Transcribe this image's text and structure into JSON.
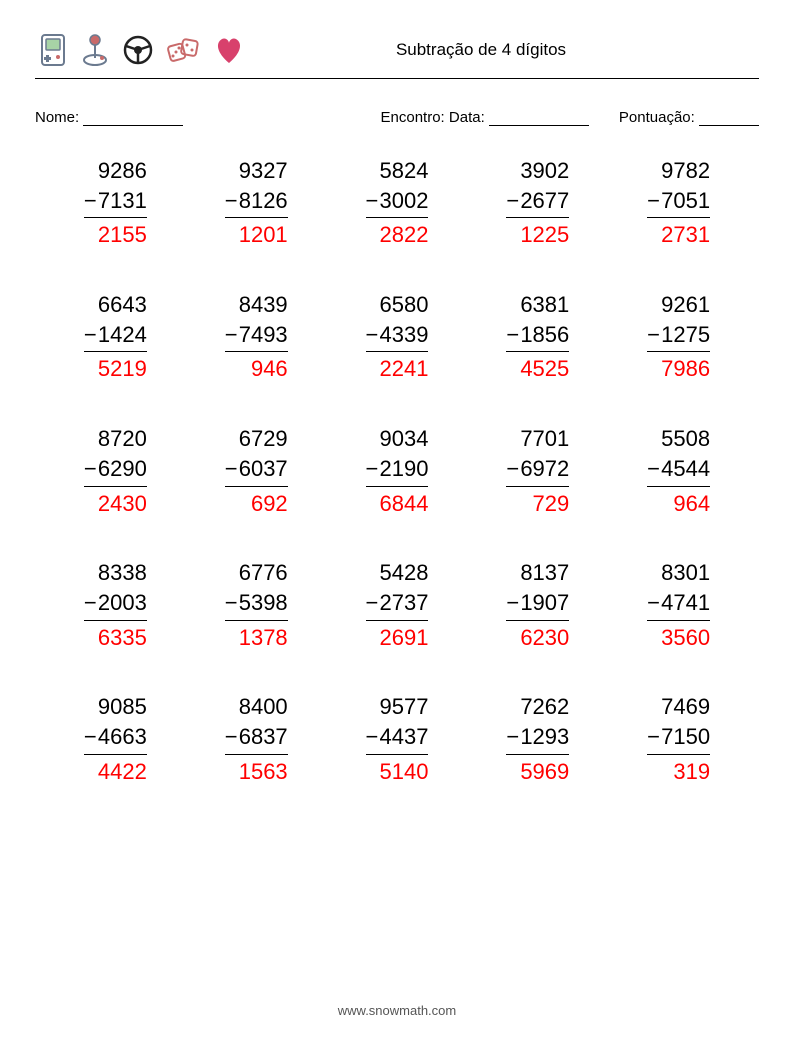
{
  "title": "Subtração de 4 dígitos",
  "labels": {
    "name": "Nome:",
    "encounter": "Encontro:",
    "date": "Data:",
    "score": "Pontuação:"
  },
  "style": {
    "answer_color": "#ff0000",
    "text_color": "#000000",
    "background": "#ffffff",
    "font_size_problems": 22,
    "columns": 5,
    "rows": 5
  },
  "icons": {
    "gameboy": {
      "outline": "#6b7a8f",
      "screen": "#a7d3a6"
    },
    "joystick": {
      "outline": "#6b7a8f",
      "ball": "#c96a6a"
    },
    "wheel": {
      "outline": "#222222"
    },
    "dice": {
      "outline": "#c96a6a"
    },
    "heart": {
      "fill": "#d8416c"
    }
  },
  "problems": [
    {
      "a": 9286,
      "b": 7131,
      "r": 2155
    },
    {
      "a": 9327,
      "b": 8126,
      "r": 1201
    },
    {
      "a": 5824,
      "b": 3002,
      "r": 2822
    },
    {
      "a": 3902,
      "b": 2677,
      "r": 1225
    },
    {
      "a": 9782,
      "b": 7051,
      "r": 2731
    },
    {
      "a": 6643,
      "b": 1424,
      "r": 5219
    },
    {
      "a": 8439,
      "b": 7493,
      "r": 946
    },
    {
      "a": 6580,
      "b": 4339,
      "r": 2241
    },
    {
      "a": 6381,
      "b": 1856,
      "r": 4525
    },
    {
      "a": 9261,
      "b": 1275,
      "r": 7986
    },
    {
      "a": 8720,
      "b": 6290,
      "r": 2430
    },
    {
      "a": 6729,
      "b": 6037,
      "r": 692
    },
    {
      "a": 9034,
      "b": 2190,
      "r": 6844
    },
    {
      "a": 7701,
      "b": 6972,
      "r": 729
    },
    {
      "a": 5508,
      "b": 4544,
      "r": 964
    },
    {
      "a": 8338,
      "b": 2003,
      "r": 6335
    },
    {
      "a": 6776,
      "b": 5398,
      "r": 1378
    },
    {
      "a": 5428,
      "b": 2737,
      "r": 2691
    },
    {
      "a": 8137,
      "b": 1907,
      "r": 6230
    },
    {
      "a": 8301,
      "b": 4741,
      "r": 3560
    },
    {
      "a": 9085,
      "b": 4663,
      "r": 4422
    },
    {
      "a": 8400,
      "b": 6837,
      "r": 1563
    },
    {
      "a": 9577,
      "b": 4437,
      "r": 5140
    },
    {
      "a": 7262,
      "b": 1293,
      "r": 5969
    },
    {
      "a": 7469,
      "b": 7150,
      "r": 319
    }
  ],
  "footer": "www.snowmath.com"
}
